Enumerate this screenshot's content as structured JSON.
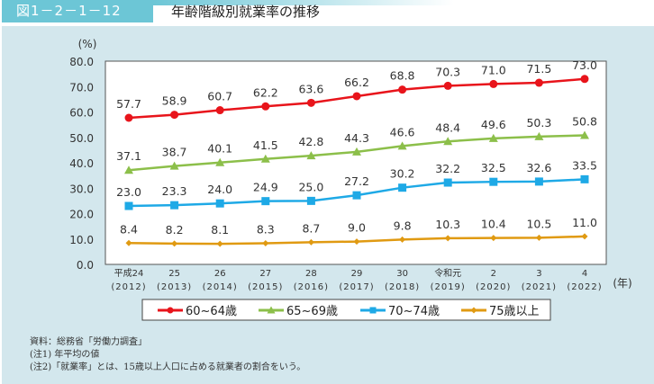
{
  "header": {
    "figure_number": "図1－2－1－12",
    "title": "年齢階級別就業率の推移"
  },
  "chart_data": {
    "type": "line",
    "title": "年齢階級別就業率の推移",
    "ylabel": "(%)",
    "xlabel": "(年)",
    "ylim": [
      0,
      80
    ],
    "yticks": [
      "0.0",
      "10.0",
      "20.0",
      "30.0",
      "40.0",
      "50.0",
      "60.0",
      "70.0",
      "80.0"
    ],
    "categories": [
      [
        "平成24",
        "(2012)"
      ],
      [
        "25",
        "(2013)"
      ],
      [
        "26",
        "(2014)"
      ],
      [
        "27",
        "(2015)"
      ],
      [
        "28",
        "(2016)"
      ],
      [
        "29",
        "(2017)"
      ],
      [
        "30",
        "(2018)"
      ],
      [
        "令和元",
        "(2019)"
      ],
      [
        "2",
        "(2020)"
      ],
      [
        "3",
        "(2021)"
      ],
      [
        "4",
        "(2022)"
      ]
    ],
    "series": [
      {
        "name": "60~64歳",
        "color": "#e8141b",
        "marker": "circle",
        "values": [
          57.7,
          58.9,
          60.7,
          62.2,
          63.6,
          66.2,
          68.8,
          70.3,
          71.0,
          71.5,
          73.0
        ]
      },
      {
        "name": "65~69歳",
        "color": "#8cbf4a",
        "marker": "triangle",
        "values": [
          37.1,
          38.7,
          40.1,
          41.5,
          42.8,
          44.3,
          46.6,
          48.4,
          49.6,
          50.3,
          50.8
        ]
      },
      {
        "name": "70~74歳",
        "color": "#1ea9e6",
        "marker": "square",
        "values": [
          23.0,
          23.3,
          24.0,
          24.9,
          25.0,
          27.2,
          30.2,
          32.2,
          32.5,
          32.6,
          33.5
        ]
      },
      {
        "name": "75歳以上",
        "color": "#e09a12",
        "marker": "diamond",
        "values": [
          8.4,
          8.2,
          8.1,
          8.3,
          8.7,
          9.0,
          9.8,
          10.3,
          10.4,
          10.5,
          11.0
        ]
      }
    ],
    "legend": "bottom"
  },
  "notes": [
    "資料：総務省「労働力調査」",
    "(注1) 年平均の値",
    "(注2)「就業率」とは、15歳以上人口に占める就業者の割合をいう。"
  ]
}
